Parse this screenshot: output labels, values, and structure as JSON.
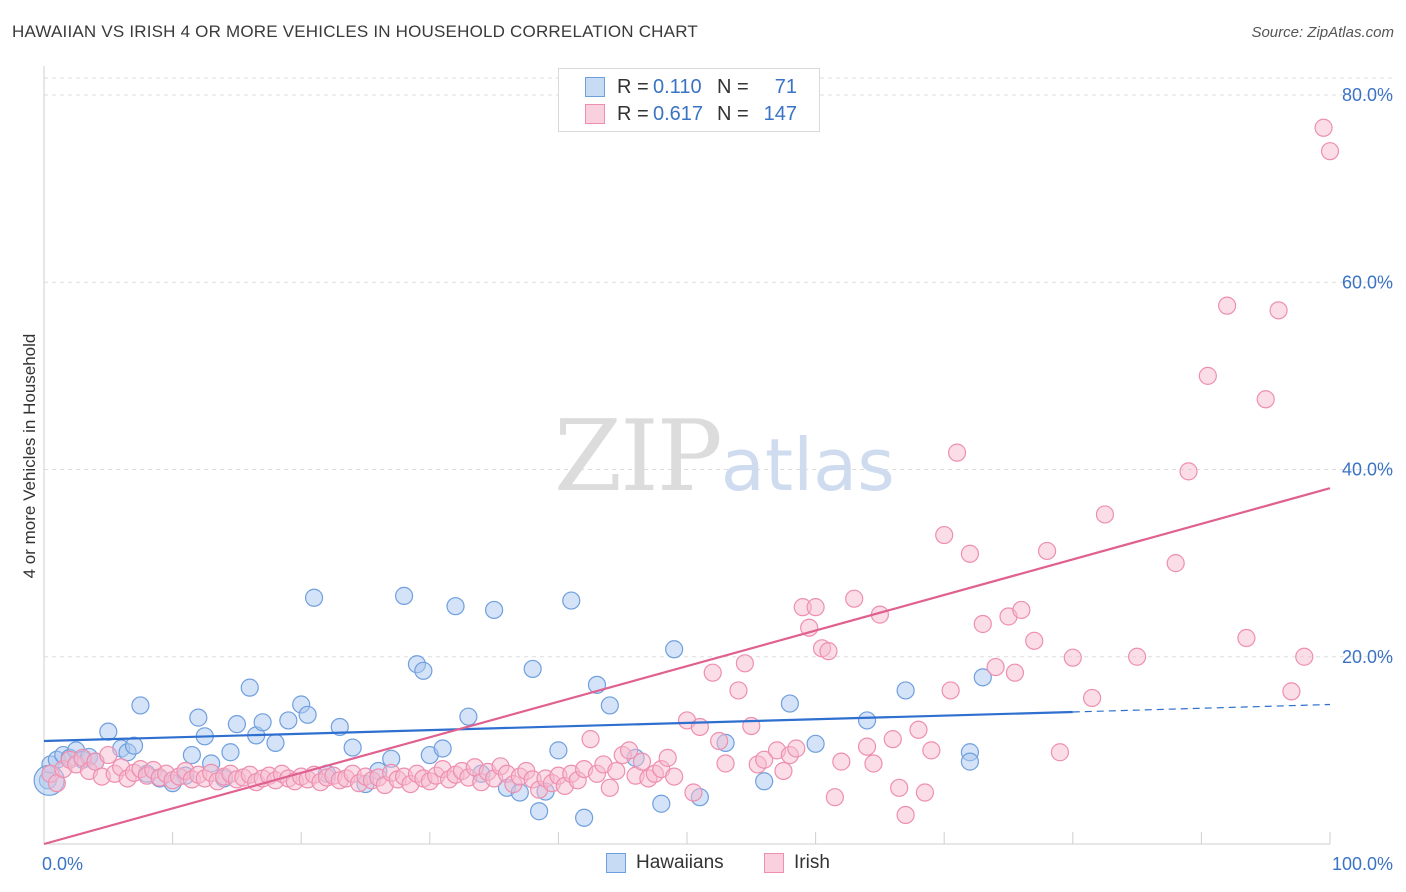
{
  "title": "HAWAIIAN VS IRISH 4 OR MORE VEHICLES IN HOUSEHOLD CORRELATION CHART",
  "source": "Source: ZipAtlas.com",
  "watermark": {
    "zip": "ZIP",
    "atlas": "atlas"
  },
  "legend": {
    "rows": [
      {
        "r_label": "R =",
        "r_value": "0.110",
        "n_label": "N =",
        "n_value": "71"
      },
      {
        "r_label": "R =",
        "r_value": "0.617",
        "n_label": "N =",
        "n_value": "147"
      }
    ]
  },
  "bottom_legend": [
    "Hawaiians",
    "Irish"
  ],
  "colors": {
    "hawaiians_fill": "#aac8ef",
    "hawaiians_stroke": "#6f9fde",
    "hawaiians_line": "#2e6fcf",
    "irish_fill": "#f6bcd0",
    "irish_stroke": "#ee8fb0",
    "irish_line": "#e0608f",
    "tick_label": "#3b73c4",
    "grid": "#dddddd"
  },
  "chart_data": {
    "type": "scatter",
    "title": "HAWAIIAN VS IRISH 4 OR MORE VEHICLES IN HOUSEHOLD CORRELATION CHART",
    "xlabel": "",
    "ylabel": "4 or more Vehicles in Household",
    "xlim": [
      0,
      100
    ],
    "ylim": [
      0,
      80
    ],
    "x_tick_labels": [
      "0.0%",
      "100.0%"
    ],
    "y_ticks": [
      20,
      40,
      60,
      80
    ],
    "y_tick_labels": [
      "20.0%",
      "40.0%",
      "60.0%",
      "80.0%"
    ],
    "grid": true,
    "legend_position": "top-center",
    "series": [
      {
        "name": "Hawaiians",
        "r": 0.11,
        "n": 71,
        "trend": {
          "x0": 0,
          "y0": 11.0,
          "x1": 80,
          "y1": 14.1,
          "dashed_to_x": 100,
          "dashed_to_y": 14.9
        },
        "points": [
          [
            0.3,
            6.8
          ],
          [
            0.5,
            8.5
          ],
          [
            1.0,
            9.0
          ],
          [
            1.5,
            9.5
          ],
          [
            2.0,
            9.2
          ],
          [
            2.5,
            10.0
          ],
          [
            3.0,
            9.0
          ],
          [
            3.5,
            9.3
          ],
          [
            4.0,
            8.8
          ],
          [
            5.0,
            12.0
          ],
          [
            6.0,
            10.2
          ],
          [
            6.5,
            9.8
          ],
          [
            7.0,
            10.5
          ],
          [
            7.5,
            14.8
          ],
          [
            8.0,
            7.5
          ],
          [
            9.0,
            7.0
          ],
          [
            10.0,
            6.5
          ],
          [
            11.0,
            7.3
          ],
          [
            11.5,
            9.5
          ],
          [
            12.0,
            13.5
          ],
          [
            12.5,
            11.5
          ],
          [
            13.0,
            8.6
          ],
          [
            14.0,
            7.0
          ],
          [
            14.5,
            9.8
          ],
          [
            15.0,
            12.8
          ],
          [
            16.0,
            16.7
          ],
          [
            16.5,
            11.6
          ],
          [
            17.0,
            13.0
          ],
          [
            18.0,
            10.8
          ],
          [
            19.0,
            13.2
          ],
          [
            20.0,
            14.9
          ],
          [
            20.5,
            13.8
          ],
          [
            21.0,
            26.3
          ],
          [
            22.0,
            7.5
          ],
          [
            23.0,
            12.5
          ],
          [
            24.0,
            10.3
          ],
          [
            25.0,
            6.4
          ],
          [
            26.0,
            7.8
          ],
          [
            27.0,
            9.1
          ],
          [
            28.0,
            26.5
          ],
          [
            29.0,
            19.2
          ],
          [
            29.5,
            18.5
          ],
          [
            30.0,
            9.5
          ],
          [
            31.0,
            10.2
          ],
          [
            32.0,
            25.4
          ],
          [
            33.0,
            13.6
          ],
          [
            34.0,
            7.5
          ],
          [
            35.0,
            25.0
          ],
          [
            36.0,
            6.0
          ],
          [
            37.0,
            5.5
          ],
          [
            38.0,
            18.7
          ],
          [
            38.5,
            3.5
          ],
          [
            39.0,
            5.6
          ],
          [
            40.0,
            10.0
          ],
          [
            41.0,
            26.0
          ],
          [
            42.0,
            2.8
          ],
          [
            43.0,
            17.0
          ],
          [
            44.0,
            14.8
          ],
          [
            46.0,
            9.2
          ],
          [
            48.0,
            4.3
          ],
          [
            49.0,
            20.8
          ],
          [
            51.0,
            5.0
          ],
          [
            53.0,
            10.8
          ],
          [
            56.0,
            6.7
          ],
          [
            58.0,
            15.0
          ],
          [
            60.0,
            10.7
          ],
          [
            64.0,
            13.2
          ],
          [
            67.0,
            16.4
          ],
          [
            72.0,
            9.8
          ],
          [
            73.0,
            17.8
          ],
          [
            72.0,
            8.8
          ]
        ]
      },
      {
        "name": "Irish",
        "r": 0.617,
        "n": 147,
        "trend": {
          "x0": 0,
          "y0": 0.0,
          "x1": 100,
          "y1": 38.0
        },
        "points": [
          [
            0.5,
            7.5
          ],
          [
            1.0,
            6.5
          ],
          [
            1.5,
            8.0
          ],
          [
            2.0,
            9.0
          ],
          [
            2.5,
            8.5
          ],
          [
            3.0,
            9.2
          ],
          [
            3.5,
            7.8
          ],
          [
            4.0,
            8.8
          ],
          [
            4.5,
            7.2
          ],
          [
            5.0,
            9.5
          ],
          [
            5.5,
            7.5
          ],
          [
            6.0,
            8.2
          ],
          [
            6.5,
            7.0
          ],
          [
            7.0,
            7.6
          ],
          [
            7.5,
            8.0
          ],
          [
            8.0,
            7.3
          ],
          [
            8.5,
            7.9
          ],
          [
            9.0,
            7.1
          ],
          [
            9.5,
            7.5
          ],
          [
            10.0,
            6.8
          ],
          [
            10.5,
            7.2
          ],
          [
            11.0,
            7.8
          ],
          [
            11.5,
            6.9
          ],
          [
            12.0,
            7.4
          ],
          [
            12.5,
            7.0
          ],
          [
            13.0,
            7.6
          ],
          [
            13.5,
            6.7
          ],
          [
            14.0,
            7.2
          ],
          [
            14.5,
            7.5
          ],
          [
            15.0,
            6.9
          ],
          [
            15.5,
            7.1
          ],
          [
            16.0,
            7.4
          ],
          [
            16.5,
            6.6
          ],
          [
            17.0,
            7.0
          ],
          [
            17.5,
            7.3
          ],
          [
            18.0,
            6.8
          ],
          [
            18.5,
            7.5
          ],
          [
            19.0,
            7.0
          ],
          [
            19.5,
            6.7
          ],
          [
            20.0,
            7.2
          ],
          [
            20.5,
            6.9
          ],
          [
            21.0,
            7.4
          ],
          [
            21.5,
            6.6
          ],
          [
            22.0,
            7.1
          ],
          [
            22.5,
            7.3
          ],
          [
            23.0,
            6.8
          ],
          [
            23.5,
            7.0
          ],
          [
            24.0,
            7.5
          ],
          [
            24.5,
            6.5
          ],
          [
            25.0,
            7.2
          ],
          [
            25.5,
            6.8
          ],
          [
            26.0,
            7.1
          ],
          [
            26.5,
            6.3
          ],
          [
            27.0,
            7.6
          ],
          [
            27.5,
            6.9
          ],
          [
            28.0,
            7.2
          ],
          [
            28.5,
            6.4
          ],
          [
            29.0,
            7.5
          ],
          [
            29.5,
            7.0
          ],
          [
            30.0,
            6.7
          ],
          [
            30.5,
            7.3
          ],
          [
            31.0,
            8.0
          ],
          [
            31.5,
            6.9
          ],
          [
            32.0,
            7.4
          ],
          [
            32.5,
            7.8
          ],
          [
            33.0,
            7.1
          ],
          [
            33.5,
            8.2
          ],
          [
            34.0,
            6.6
          ],
          [
            34.5,
            7.7
          ],
          [
            35.0,
            7.0
          ],
          [
            35.5,
            8.3
          ],
          [
            36.0,
            7.5
          ],
          [
            36.5,
            6.4
          ],
          [
            37.0,
            7.2
          ],
          [
            37.5,
            7.8
          ],
          [
            38.0,
            6.9
          ],
          [
            38.5,
            5.8
          ],
          [
            39.0,
            7.0
          ],
          [
            39.5,
            6.5
          ],
          [
            40.0,
            7.3
          ],
          [
            40.5,
            6.2
          ],
          [
            41.0,
            7.5
          ],
          [
            41.5,
            6.8
          ],
          [
            42.0,
            8.0
          ],
          [
            42.5,
            11.2
          ],
          [
            43.0,
            7.5
          ],
          [
            43.5,
            8.5
          ],
          [
            44.0,
            6.0
          ],
          [
            44.5,
            7.8
          ],
          [
            45.0,
            9.5
          ],
          [
            45.5,
            10.0
          ],
          [
            46.0,
            7.3
          ],
          [
            46.5,
            8.8
          ],
          [
            47.0,
            7.0
          ],
          [
            47.5,
            7.5
          ],
          [
            48.0,
            8.0
          ],
          [
            48.5,
            9.2
          ],
          [
            49.0,
            7.2
          ],
          [
            50.0,
            13.2
          ],
          [
            50.5,
            5.5
          ],
          [
            51.0,
            12.5
          ],
          [
            52.0,
            18.3
          ],
          [
            52.5,
            11.0
          ],
          [
            53.0,
            8.6
          ],
          [
            54.0,
            16.4
          ],
          [
            54.5,
            19.3
          ],
          [
            55.0,
            12.6
          ],
          [
            55.5,
            8.5
          ],
          [
            56.0,
            9.0
          ],
          [
            57.0,
            10.0
          ],
          [
            57.5,
            7.8
          ],
          [
            58.0,
            9.5
          ],
          [
            58.5,
            10.2
          ],
          [
            59.0,
            25.3
          ],
          [
            59.5,
            23.1
          ],
          [
            60.0,
            25.3
          ],
          [
            60.5,
            20.9
          ],
          [
            61.0,
            20.6
          ],
          [
            61.5,
            5.0
          ],
          [
            62.0,
            8.8
          ],
          [
            63.0,
            26.2
          ],
          [
            64.0,
            10.4
          ],
          [
            64.5,
            8.6
          ],
          [
            65.0,
            24.5
          ],
          [
            66.0,
            11.2
          ],
          [
            66.5,
            6.0
          ],
          [
            67.0,
            3.1
          ],
          [
            68.0,
            12.2
          ],
          [
            68.5,
            5.5
          ],
          [
            69.0,
            10.0
          ],
          [
            70.0,
            33.0
          ],
          [
            70.5,
            16.4
          ],
          [
            71.0,
            41.8
          ],
          [
            72.0,
            31.0
          ],
          [
            73.0,
            23.5
          ],
          [
            74.0,
            18.9
          ],
          [
            75.0,
            24.3
          ],
          [
            75.5,
            18.3
          ],
          [
            76.0,
            25.0
          ],
          [
            77.0,
            21.7
          ],
          [
            78.0,
            31.3
          ],
          [
            79.0,
            9.8
          ],
          [
            80.0,
            19.9
          ],
          [
            81.5,
            15.6
          ],
          [
            82.5,
            35.2
          ],
          [
            85.0,
            20.0
          ],
          [
            88.0,
            30.0
          ],
          [
            89.0,
            39.8
          ],
          [
            90.5,
            50.0
          ],
          [
            92.0,
            57.5
          ],
          [
            93.5,
            22.0
          ],
          [
            95.0,
            47.5
          ],
          [
            96.0,
            57.0
          ],
          [
            97.0,
            16.3
          ],
          [
            98.0,
            20.0
          ],
          [
            99.5,
            76.5
          ],
          [
            100.0,
            74.0
          ]
        ]
      }
    ]
  }
}
